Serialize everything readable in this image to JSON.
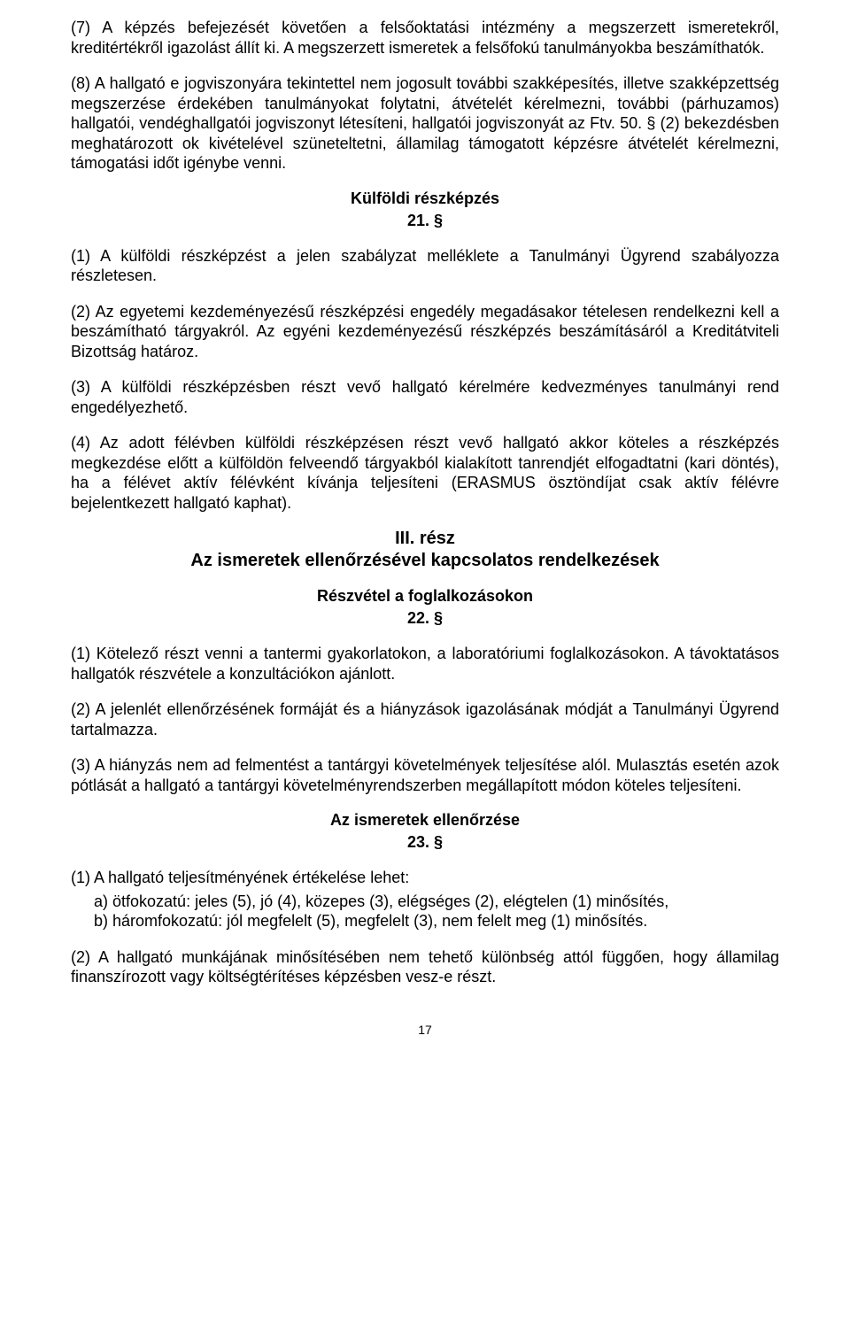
{
  "para7": "(7) A képzés befejezését követően a felsőoktatási intézmény a megszerzett ismeretekről, kreditértékről igazolást állít ki. A megszerzett ismeretek a felsőfokú tanulmányokba beszámíthatók.",
  "para8": "(8) A hallgató e jogviszonyára tekintettel nem jogosult további szakképesítés, illetve szakképzettség megszerzése érdekében tanulmányokat folytatni, átvételét kérelmezni, további (párhuzamos) hallgatói, vendéghallgatói jogviszonyt létesíteni, hallgatói jogviszonyát az Ftv. 50. § (2) bekezdésben meghatározott ok kivételével szüneteltetni, államilag támogatott képzésre átvételét kérelmezni, támogatási időt igénybe venni.",
  "h21_title": "Külföldi részképzés",
  "h21_num": "21. §",
  "p21_1": "(1) A külföldi részképzést a jelen szabályzat melléklete a Tanulmányi Ügyrend szabályozza részletesen.",
  "p21_2": "(2) Az egyetemi kezdeményezésű részképzési engedély megadásakor tételesen rendelkezni kell a beszámítható tárgyakról. Az egyéni kezdeményezésű részképzés beszámításáról a Kreditátviteli Bizottság határoz.",
  "p21_3": "(3) A külföldi részképzésben részt vevő hallgató kérelmére kedvezményes tanulmányi rend engedélyezhető.",
  "p21_4": "(4) Az adott félévben külföldi részképzésen részt vevő hallgató akkor köteles a részképzés megkezdése előtt a külföldön felveendő tárgyakból kialakított tanrendjét elfogadtatni (kari döntés), ha a félévet aktív félévként kívánja teljesíteni (ERASMUS ösztöndíjat csak aktív félévre bejelentkezett hallgató kaphat).",
  "part3_title": "III. rész",
  "part3_sub": "Az ismeretek ellenőrzésével kapcsolatos rendelkezések",
  "h22_title": "Részvétel a foglalkozásokon",
  "h22_num": "22. §",
  "p22_1": "(1) Kötelező részt venni a tantermi gyakorlatokon, a laboratóriumi foglalkozásokon. A távoktatásos hallgatók részvétele a konzultációkon ajánlott.",
  "p22_2": "(2) A jelenlét ellenőrzésének formáját és a hiányzások igazolásának módját a Tanulmányi Ügyrend tartalmazza.",
  "p22_3": "(3) A hiányzás nem ad felmentést a tantárgyi követelmények teljesítése alól. Mulasztás esetén azok pótlását a hallgató a tantárgyi követelményrendszerben megállapított módon köteles teljesíteni.",
  "h23_title": "Az ismeretek ellenőrzése",
  "h23_num": "23. §",
  "p23_1": "(1) A hallgató teljesítményének értékelése lehet:",
  "p23_1a": "a) ötfokozatú: jeles (5), jó (4), közepes (3), elégséges (2), elégtelen (1) minősítés,",
  "p23_1b": "b) háromfokozatú: jól megfelelt (5), megfelelt (3), nem felelt meg (1) minősítés.",
  "p23_2": "(2) A hallgató munkájának minősítésében nem tehető különbség attól függően, hogy államilag finanszírozott vagy költségtérítéses képzésben vesz-e részt.",
  "pagenum": "17"
}
